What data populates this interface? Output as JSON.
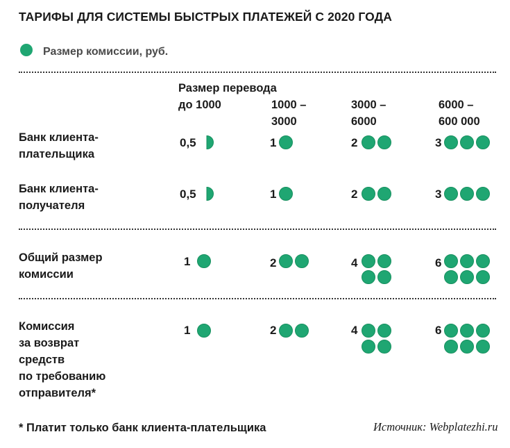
{
  "title": "ТАРИФЫ ДЛЯ СИСТЕМЫ БЫСТРЫХ ПЛАТЕЖЕЙ С 2020 ГОДА",
  "legend": "Размер комиссии, руб.",
  "colors": {
    "dot": "#1fa672",
    "dot_stroke": "#17905f",
    "text": "#1a1a1a"
  },
  "column_header_prefix": "Размер перевода",
  "footnote": "* Платит только банк клиента-плательщика",
  "source": "Источник: Webplatezhi.ru",
  "chart_data": {
    "type": "table",
    "columns": [
      {
        "line1": "до 1000",
        "line2": ""
      },
      {
        "line1": "1000 –",
        "line2": "3000"
      },
      {
        "line1": "3000 –",
        "line2": "6000"
      },
      {
        "line1": "6000 –",
        "line2": "600 000"
      }
    ],
    "rows": [
      {
        "label": [
          "Банк клиента-",
          "плательщика"
        ],
        "values": [
          0.5,
          1,
          2,
          3
        ],
        "display": [
          "0,5",
          "1",
          "2",
          "3"
        ]
      },
      {
        "label": [
          "Банк клиента-",
          "получателя"
        ],
        "values": [
          0.5,
          1,
          2,
          3
        ],
        "display": [
          "0,5",
          "1",
          "2",
          "3"
        ]
      },
      {
        "label": [
          "Общий размер",
          "комиссии"
        ],
        "values": [
          1,
          2,
          4,
          6
        ],
        "display": [
          "1",
          "2",
          "4",
          "6"
        ]
      },
      {
        "label": [
          "Комиссия",
          "за возврат",
          "средств",
          "по требованию",
          "отправителя*"
        ],
        "values": [
          1,
          2,
          4,
          6
        ],
        "display": [
          "1",
          "2",
          "4",
          "6"
        ]
      }
    ]
  }
}
